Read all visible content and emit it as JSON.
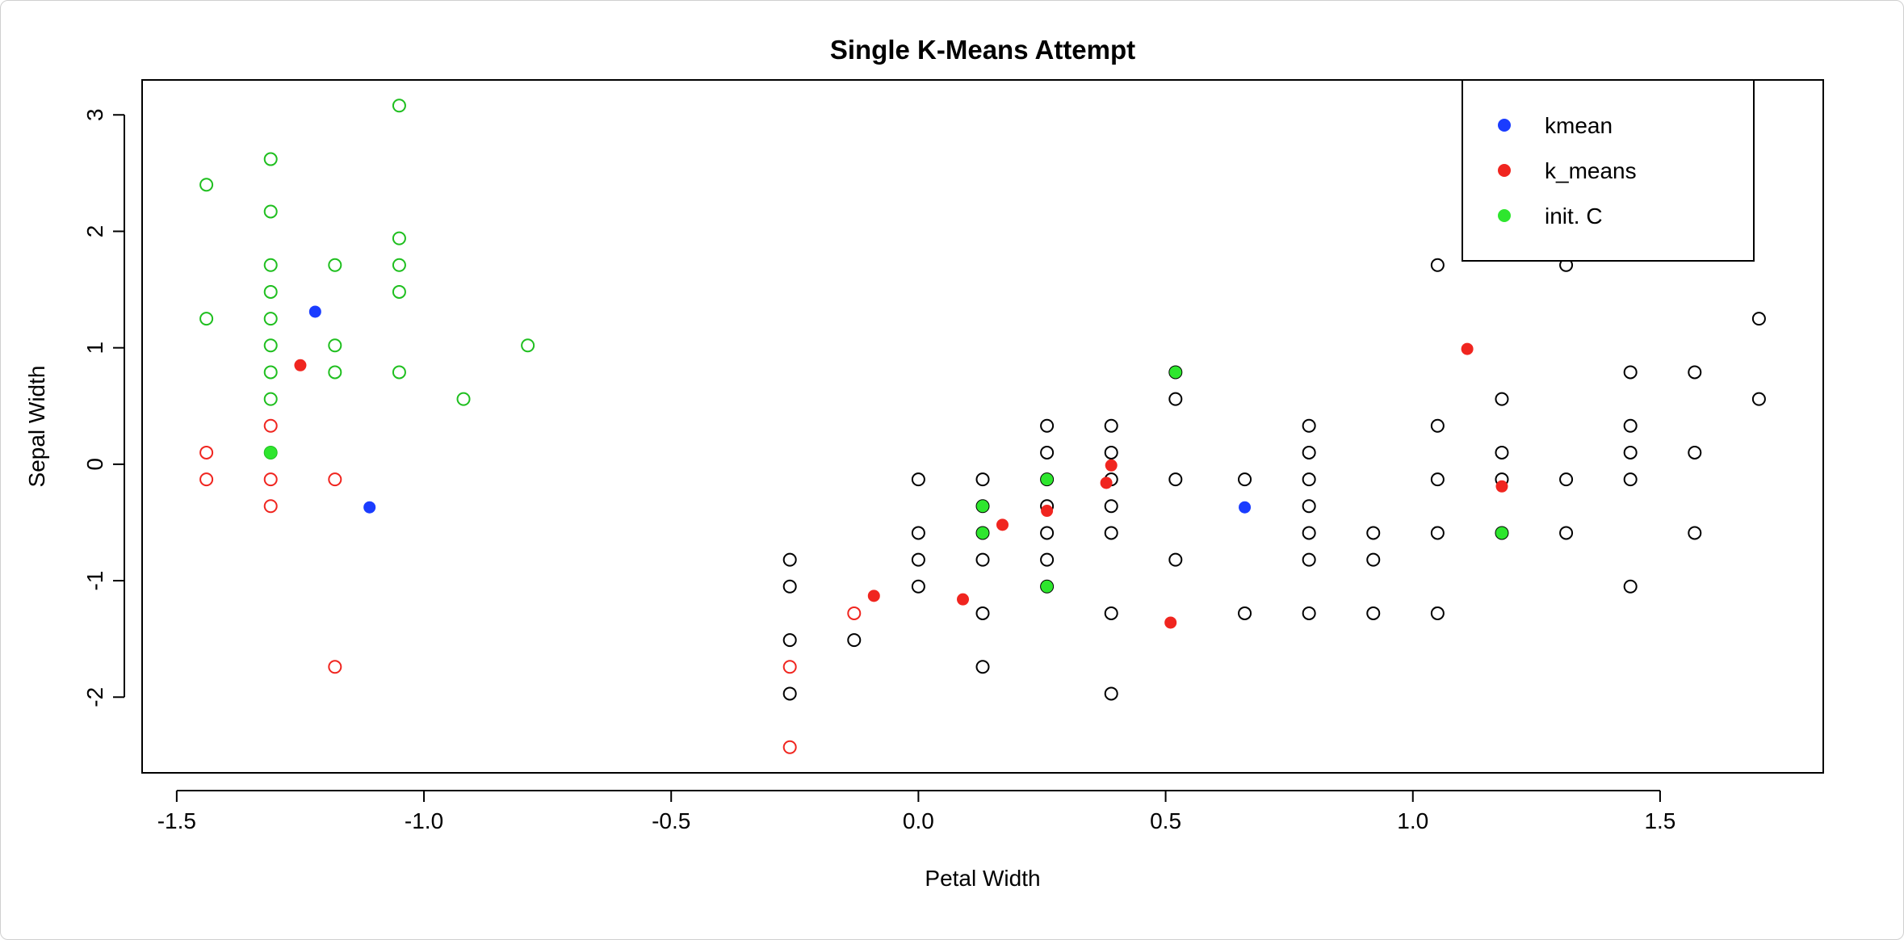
{
  "colors": {
    "kmean": "#1a3cff",
    "k_means": "#f0251f",
    "init_c": "#2ee62e",
    "group1": "#1fbf1f",
    "group2": "#f0251f",
    "group3": "#000000"
  },
  "chart_data": {
    "type": "scatter",
    "title": "Single K-Means Attempt",
    "xlabel": "Petal Width",
    "ylabel": "Sepal Width",
    "xlim": [
      -1.57,
      1.83
    ],
    "ylim": [
      -2.65,
      3.3
    ],
    "xticks": [
      -1.5,
      -1.0,
      -0.5,
      0.0,
      0.5,
      1.0,
      1.5
    ],
    "xtick_labels": [
      "-1.5",
      "-1.0",
      "-0.5",
      "0.0",
      "0.5",
      "1.0",
      "1.5"
    ],
    "yticks": [
      -2,
      -1,
      0,
      1,
      2,
      3
    ],
    "ytick_labels": [
      "-2",
      "-1",
      "0",
      "1",
      "2",
      "3"
    ],
    "grid": false,
    "legend_position": "top-right",
    "legend": [
      {
        "label": "kmean",
        "color_key": "kmean"
      },
      {
        "label": "k_means",
        "color_key": "k_means"
      },
      {
        "label": "init. C",
        "color_key": "init_c"
      }
    ],
    "point_groups": [
      {
        "color_key": "group1",
        "filled": false,
        "points": [
          [
            -1.05,
            3.08
          ],
          [
            -1.31,
            2.62
          ],
          [
            -1.44,
            2.4
          ],
          [
            -1.31,
            2.17
          ],
          [
            -1.05,
            1.94
          ],
          [
            -1.31,
            1.71
          ],
          [
            -1.18,
            1.71
          ],
          [
            -1.05,
            1.71
          ],
          [
            -1.31,
            1.48
          ],
          [
            -1.05,
            1.48
          ],
          [
            -1.44,
            1.25
          ],
          [
            -1.31,
            1.25
          ],
          [
            -1.31,
            1.02
          ],
          [
            -1.18,
            1.02
          ],
          [
            -0.79,
            1.02
          ],
          [
            -1.31,
            0.79
          ],
          [
            -1.18,
            0.79
          ],
          [
            -1.05,
            0.79
          ],
          [
            -1.31,
            0.56
          ],
          [
            -0.92,
            0.56
          ],
          [
            -1.31,
            0.1
          ]
        ]
      },
      {
        "color_key": "group2",
        "filled": false,
        "points": [
          [
            -1.31,
            0.33
          ],
          [
            -1.44,
            0.1
          ],
          [
            -1.44,
            -0.13
          ],
          [
            -1.31,
            -0.13
          ],
          [
            -1.18,
            -0.13
          ],
          [
            -1.31,
            -0.36
          ],
          [
            -1.18,
            -1.74
          ],
          [
            -0.13,
            -1.28
          ],
          [
            -0.26,
            -1.74
          ],
          [
            -0.26,
            -2.43
          ]
        ]
      },
      {
        "color_key": "group3",
        "filled": false,
        "points": [
          [
            -0.26,
            -0.82
          ],
          [
            -0.26,
            -1.05
          ],
          [
            -0.26,
            -1.51
          ],
          [
            -0.26,
            -1.97
          ],
          [
            -0.13,
            -1.51
          ],
          [
            0.0,
            -0.13
          ],
          [
            0.0,
            -0.59
          ],
          [
            0.0,
            -0.82
          ],
          [
            0.0,
            -1.05
          ],
          [
            0.13,
            -0.13
          ],
          [
            0.13,
            -0.36
          ],
          [
            0.13,
            -0.59
          ],
          [
            0.13,
            -0.82
          ],
          [
            0.13,
            -1.28
          ],
          [
            0.13,
            -1.74
          ],
          [
            0.26,
            0.33
          ],
          [
            0.26,
            0.1
          ],
          [
            0.26,
            -0.13
          ],
          [
            0.26,
            -0.36
          ],
          [
            0.26,
            -0.59
          ],
          [
            0.26,
            -0.82
          ],
          [
            0.26,
            -1.05
          ],
          [
            0.39,
            0.33
          ],
          [
            0.39,
            0.1
          ],
          [
            0.39,
            -0.13
          ],
          [
            0.39,
            -0.36
          ],
          [
            0.39,
            -0.59
          ],
          [
            0.39,
            -1.28
          ],
          [
            0.39,
            -1.97
          ],
          [
            0.52,
            0.79
          ],
          [
            0.52,
            0.56
          ],
          [
            0.52,
            -0.13
          ],
          [
            0.52,
            -0.82
          ],
          [
            0.66,
            -0.13
          ],
          [
            0.66,
            -1.28
          ],
          [
            0.79,
            0.33
          ],
          [
            0.79,
            0.1
          ],
          [
            0.79,
            -0.13
          ],
          [
            0.79,
            -0.36
          ],
          [
            0.79,
            -0.59
          ],
          [
            0.79,
            -0.82
          ],
          [
            0.79,
            -1.28
          ],
          [
            0.92,
            -0.59
          ],
          [
            0.92,
            -0.82
          ],
          [
            0.92,
            -1.28
          ],
          [
            1.05,
            1.71
          ],
          [
            1.05,
            0.33
          ],
          [
            1.05,
            -0.13
          ],
          [
            1.05,
            -0.59
          ],
          [
            1.05,
            -1.28
          ],
          [
            1.18,
            0.56
          ],
          [
            1.18,
            0.1
          ],
          [
            1.18,
            -0.13
          ],
          [
            1.18,
            -0.59
          ],
          [
            1.31,
            1.71
          ],
          [
            1.31,
            -0.13
          ],
          [
            1.31,
            -0.59
          ],
          [
            1.44,
            0.79
          ],
          [
            1.44,
            0.33
          ],
          [
            1.44,
            0.1
          ],
          [
            1.44,
            -0.13
          ],
          [
            1.44,
            -1.05
          ],
          [
            1.57,
            0.79
          ],
          [
            1.57,
            0.1
          ],
          [
            1.57,
            -0.59
          ],
          [
            1.7,
            1.25
          ],
          [
            1.7,
            0.56
          ]
        ]
      },
      {
        "color_key": "init_c",
        "filled": true,
        "points": [
          [
            -1.31,
            0.1
          ],
          [
            0.13,
            -0.36
          ],
          [
            0.13,
            -0.59
          ],
          [
            0.26,
            -0.13
          ],
          [
            0.26,
            -1.05
          ],
          [
            0.52,
            0.79
          ],
          [
            1.18,
            -0.59
          ]
        ]
      },
      {
        "color_key": "k_means",
        "filled": true,
        "points": [
          [
            -1.25,
            0.85
          ],
          [
            -0.09,
            -1.13
          ],
          [
            0.09,
            -1.16
          ],
          [
            0.17,
            -0.52
          ],
          [
            0.26,
            -0.4
          ],
          [
            0.38,
            -0.16
          ],
          [
            0.39,
            -0.01
          ],
          [
            0.51,
            -1.36
          ],
          [
            1.11,
            0.99
          ],
          [
            1.18,
            -0.19
          ]
        ]
      },
      {
        "color_key": "kmean",
        "filled": true,
        "points": [
          [
            -1.22,
            1.31
          ],
          [
            -1.11,
            -0.37
          ],
          [
            0.66,
            -0.37
          ]
        ]
      }
    ]
  }
}
